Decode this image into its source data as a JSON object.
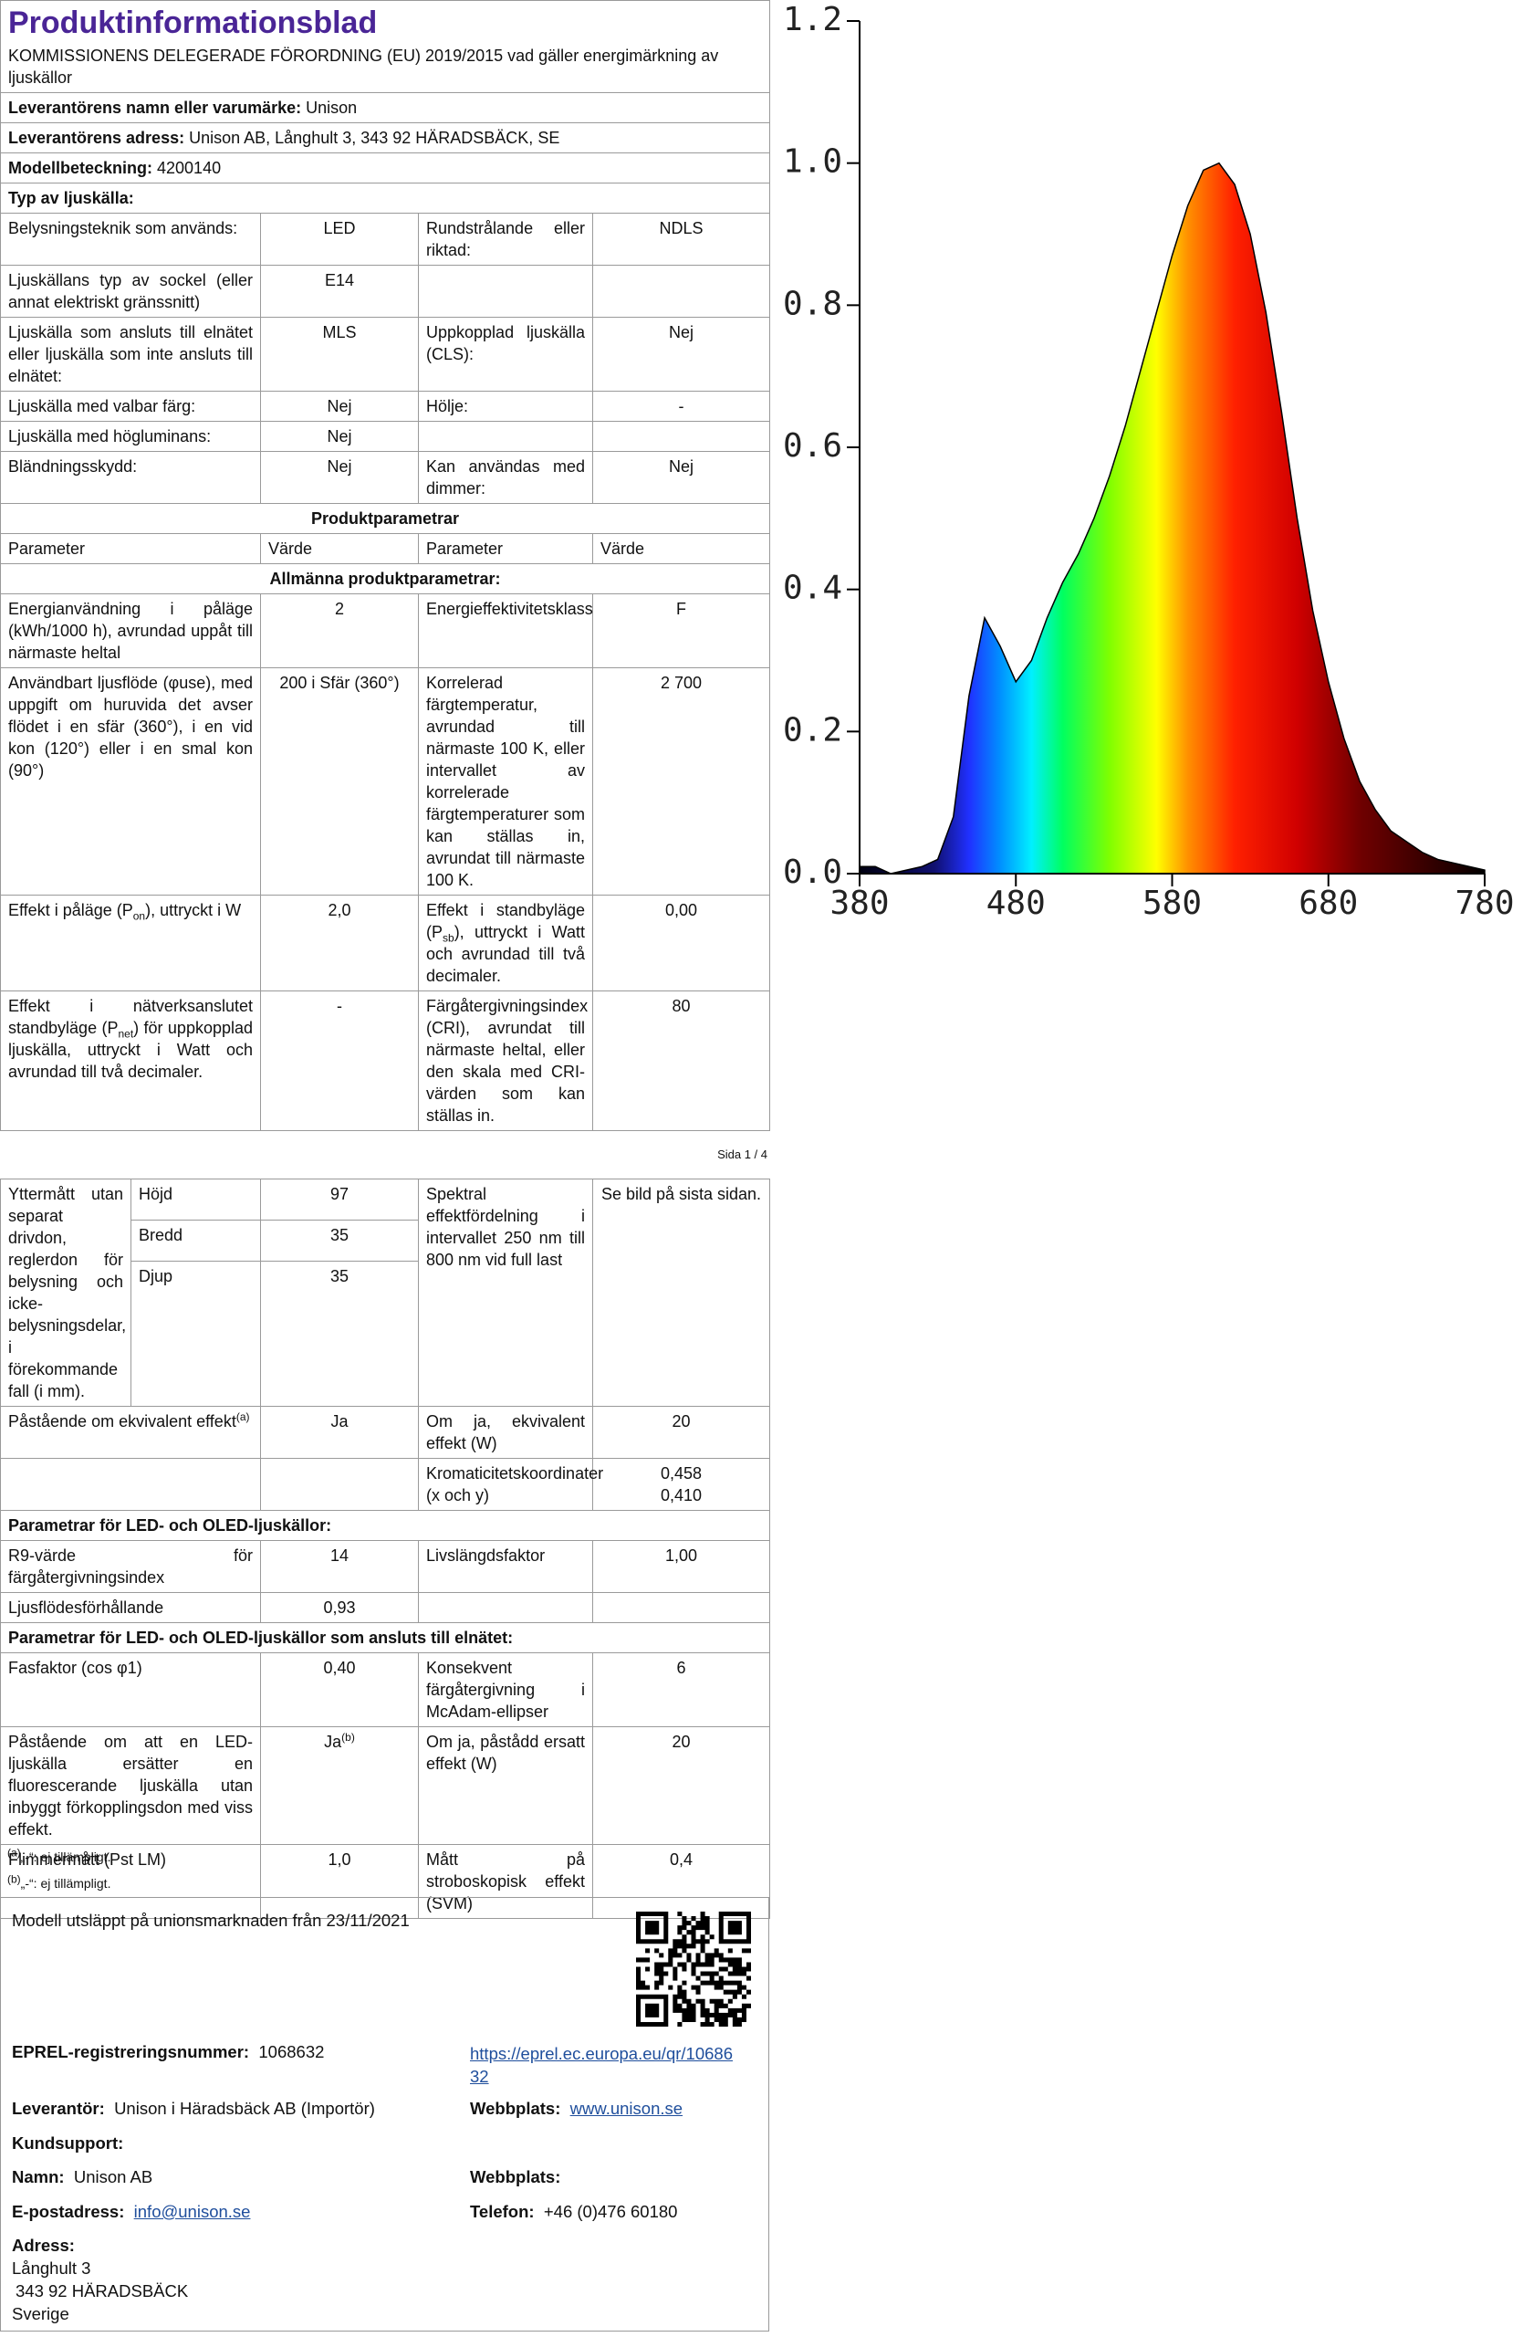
{
  "page1": {
    "title": "Produktinformationsblad",
    "subtitle": "KOMMISSIONENS DELEGERADE FÖRORDNING (EU) 2019/2015 vad gäller energimärkning av ljuskällor",
    "rows": [
      [
        [
          {
            "b": "Leverantörens namn eller varumärke:"
          },
          " Unison"
        ]
      ],
      [
        [
          {
            "b": "Leverantörens adress:"
          },
          " Unison AB, Långhult 3, 343 92 HÄRADSBÄCK, SE"
        ]
      ],
      [
        [
          {
            "b": "Modellbeteckning:"
          },
          " 4200140"
        ]
      ],
      [
        [
          {
            "b": "Typ av ljuskälla:"
          }
        ]
      ],
      [
        "Belysningsteknik som används:",
        "LED",
        "Rundstrålande eller riktad:",
        "NDLS"
      ],
      [
        "Ljuskällans typ av sockel (eller annat elektriskt gränssnitt)",
        "E14",
        null,
        null
      ],
      [
        "Ljuskälla som ansluts till elnätet eller ljuskälla som inte ansluts till elnätet:",
        "MLS",
        "Uppkopplad ljuskälla (CLS):",
        "Nej"
      ],
      [
        "Ljuskälla med valbar färg:",
        "Nej",
        "Hölje:",
        "-"
      ],
      [
        "Ljuskälla med högluminans:",
        "Nej",
        null,
        null
      ],
      [
        "Bländningsskydd:",
        "Nej",
        "Kan användas med dimmer:",
        "Nej"
      ]
    ],
    "section_title": "Produktparametrar",
    "column_headers": [
      "Parameter",
      "Värde",
      "Parameter",
      "Värde"
    ],
    "subsection_title": "Allmänna produktparametrar:",
    "parameter_rows": [
      [
        "Energianvändning i påläge (kWh/1000 h), avrundad uppåt till närmaste heltal",
        "2",
        "Energieffektivitetsklass",
        "F"
      ],
      [
        "Användbart ljusflöde (φuse), med uppgift om huruvida det avser flödet i en sfär (360°), i en vid kon (120°) eller i en smal kon (90°)",
        "200 i Sfär (360°)",
        "Korrelerad färgtemperatur, avrundad till närmaste 100 K, eller intervallet av korrelerade färgtemperaturer som kan ställas in, avrundat till närmaste 100 K.",
        "2 700"
      ],
      [
        [
          "Effekt i påläge (P",
          {
            "sub": "on"
          },
          "), uttryckt i W"
        ],
        "2,0",
        [
          "Effekt i standbyläge (P",
          {
            "sub": "sb"
          },
          "), uttryckt i Watt och avrundad till två decimaler."
        ],
        "0,00"
      ],
      [
        [
          "Effekt i nätverksanslutet standbyläge (P",
          {
            "sub": "net"
          },
          ") för uppkopplad ljuskälla, uttryckt i Watt och avrundad till två decimaler."
        ],
        "-",
        "Färgåtergivningsindex (CRI), avrundat till närmaste heltal, eller den skala med CRI-värden som kan ställas in.",
        "80"
      ]
    ]
  },
  "page_number": "Sida 1 / 4",
  "page2": {
    "dimensions": {
      "label": "Yttermått utan separat drivdon, reglerdon för belysning och icke-belysningsdelar, i förekommande fall (i mm).",
      "items": [
        {
          "name": "Höjd",
          "value": "97"
        },
        {
          "name": "Bredd",
          "value": "35"
        },
        {
          "name": "Djup",
          "value": "35"
        }
      ],
      "param_label": "Spektral effektfördelning i intervallet 250 nm till 800 nm vid full last",
      "param_value": "Se bild på sista sidan."
    },
    "rows": [
      [
        [
          "Påstående om ekvivalent effekt",
          {
            "sup": "(a)"
          }
        ],
        "Ja",
        "Om ja, ekvivalent effekt (W)",
        "20"
      ],
      [
        null,
        null,
        "Kromaticitetskoordinater (x och y)",
        "0,458\n0,410"
      ],
      [
        [
          {
            "b": "Parametrar för LED- och OLED-ljuskällor:"
          }
        ]
      ],
      [
        "R9-värde för färgåtergivningsindex",
        "14",
        "Livslängdsfaktor",
        "1,00"
      ],
      [
        "Ljusflödesförhållande",
        "0,93",
        null,
        null
      ],
      [
        [
          {
            "b": "Parametrar för LED- och OLED-ljuskällor som ansluts till elnätet:"
          }
        ]
      ],
      [
        "Fasfaktor (cos φ1)",
        "0,40",
        "Konsekvent färgåtergivning i McAdam-ellipser",
        "6"
      ],
      [
        "Påstående om att en LED-ljuskälla ersätter en fluorescerande ljuskälla utan inbyggt förkopplingsdon med viss effekt.",
        [
          "Ja",
          {
            "sup": "(b)"
          }
        ],
        "Om ja, påstådd ersatt effekt (W)",
        "20"
      ],
      [
        "Flimmermått (Pst LM)",
        "1,0",
        "Mått på stroboskopisk effekt (SVM)",
        "0,4"
      ]
    ],
    "notes": [
      [
        {
          "sup": "(a)"
        },
        "„-“: ej tillämpligt."
      ],
      [
        {
          "sup": "(b)"
        },
        "„-“: ej tillämpligt."
      ]
    ]
  },
  "footer": {
    "release": "Modell utsläppt på unionsmarknaden från 23/11/2021",
    "eprel_label": "EPREL-registreringsnummer:",
    "eprel_number": "1068632",
    "eprel_url": "https://eprel.ec.europa.eu/qr/1068632",
    "supplier_label": "Leverantör:",
    "supplier": "Unison i Häradsbäck AB (Importör)",
    "website_label": "Webbplats:",
    "website": "www.unison.se",
    "support_label": "Kundsupport:",
    "name_label": "Namn:",
    "name": "Unison AB",
    "support_website_label": "Webbplats:",
    "email_label": "E-postadress:",
    "email": "info@unison.se",
    "phone_label": "Telefon:",
    "phone": "+46 (0)476 60180",
    "address_label": "Adress:",
    "address_lines": [
      "Långhult 3",
      "343 92 HÄRADSBÄCK",
      "Sverige"
    ]
  },
  "chart_data": {
    "type": "area",
    "x": [
      380,
      390,
      400,
      410,
      420,
      430,
      440,
      450,
      460,
      470,
      480,
      490,
      500,
      510,
      520,
      530,
      540,
      550,
      560,
      570,
      580,
      590,
      600,
      610,
      620,
      630,
      640,
      650,
      660,
      670,
      680,
      690,
      700,
      710,
      720,
      730,
      740,
      750,
      760,
      770,
      780
    ],
    "values": [
      0.01,
      0.01,
      0.0,
      0.005,
      0.01,
      0.02,
      0.08,
      0.25,
      0.36,
      0.32,
      0.27,
      0.3,
      0.36,
      0.41,
      0.45,
      0.5,
      0.56,
      0.63,
      0.71,
      0.79,
      0.87,
      0.94,
      0.99,
      1.0,
      0.97,
      0.9,
      0.79,
      0.65,
      0.5,
      0.37,
      0.27,
      0.19,
      0.13,
      0.09,
      0.06,
      0.045,
      0.03,
      0.02,
      0.015,
      0.01,
      0.005
    ],
    "xlim": [
      380,
      780
    ],
    "ylim": [
      0,
      1.2
    ],
    "xticks": [
      380,
      480,
      580,
      680,
      780
    ],
    "yticks": [
      {
        "value": 0,
        "label": "0.0"
      },
      0.2,
      0.4,
      0.6,
      0.8,
      {
        "value": 1,
        "label": "1.0"
      },
      1.2
    ]
  }
}
